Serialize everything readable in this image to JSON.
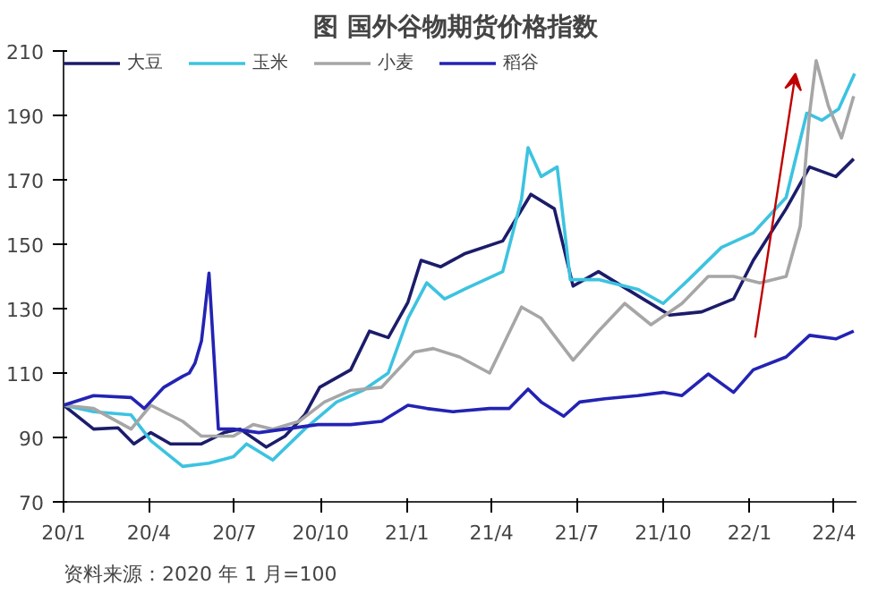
{
  "chart_data": {
    "type": "line",
    "title": "图  国外谷物期货价格指数",
    "annotations": [
      "资料来源：2020 年 1 月=100"
    ],
    "xlim": [
      "2020-01-01",
      "2022-04-25"
    ],
    "ylim": [
      70,
      210
    ],
    "xticks": [
      {
        "value": "2020-01",
        "label": "20/1"
      },
      {
        "value": "2020-04",
        "label": "20/4"
      },
      {
        "value": "2020-07",
        "label": "20/7"
      },
      {
        "value": "2020-10",
        "label": "20/10"
      },
      {
        "value": "2021-01",
        "label": "21/1"
      },
      {
        "value": "2021-04",
        "label": "21/4"
      },
      {
        "value": "2021-07",
        "label": "21/7"
      },
      {
        "value": "2021-10",
        "label": "21/10"
      },
      {
        "value": "2022-01",
        "label": "22/1"
      },
      {
        "value": "2022-04",
        "label": "22/4"
      }
    ],
    "yticks": [
      70,
      90,
      110,
      130,
      150,
      170,
      190,
      210
    ],
    "legend": "top",
    "marker": "none",
    "line_style": "solid",
    "series": [
      {
        "name": "大豆",
        "color": "#1c1c6b",
        "x": [
          "2020-01-01",
          "2020-02-02",
          "2020-02-28",
          "2020-03-16",
          "2020-04-03",
          "2020-04-24",
          "2020-05-27",
          "2020-06-10",
          "2020-06-20",
          "2020-07-07",
          "2020-08-04",
          "2020-08-24",
          "2020-09-14",
          "2020-09-30",
          "2020-11-02",
          "2020-11-22",
          "2020-12-12",
          "2021-01-02",
          "2021-01-16",
          "2021-02-06",
          "2021-03-03",
          "2021-04-13",
          "2021-05-13",
          "2021-06-07",
          "2021-06-27",
          "2021-07-24",
          "2021-09-04",
          "2021-10-08",
          "2021-11-11",
          "2021-12-15",
          "2022-01-05",
          "2022-02-09",
          "2022-03-06",
          "2022-04-03",
          "2022-04-22"
        ],
        "values": [
          100,
          92.6,
          93,
          88,
          91.5,
          88,
          88,
          90,
          91.5,
          92.6,
          87,
          90.4,
          97,
          105.6,
          111,
          123,
          121,
          132,
          145,
          143,
          147,
          151,
          165.5,
          161,
          137,
          141.5,
          134,
          128,
          129,
          133,
          145,
          161,
          174,
          171,
          176.5
        ]
      },
      {
        "name": "玉米",
        "color": "#3cc3e0",
        "x": [
          "2020-01-01",
          "2020-02-02",
          "2020-03-13",
          "2020-04-03",
          "2020-05-07",
          "2020-06-04",
          "2020-06-30",
          "2020-07-14",
          "2020-08-11",
          "2020-09-14",
          "2020-10-18",
          "2020-11-15",
          "2020-12-12",
          "2021-01-02",
          "2021-01-22",
          "2021-02-10",
          "2021-03-03",
          "2021-04-13",
          "2021-05-03",
          "2021-05-10",
          "2021-05-24",
          "2021-06-10",
          "2021-06-24",
          "2021-07-24",
          "2021-09-04",
          "2021-10-01",
          "2021-10-28",
          "2021-12-02",
          "2022-01-05",
          "2022-02-09",
          "2022-03-03",
          "2022-03-19",
          "2022-04-06",
          "2022-04-23"
        ],
        "values": [
          100,
          98,
          97,
          89,
          81,
          82,
          84,
          88,
          83,
          92.6,
          101,
          104.6,
          110,
          127,
          138,
          133,
          136,
          141.5,
          164,
          180,
          171,
          174,
          139,
          139,
          136,
          131.6,
          139,
          149,
          153.5,
          164.5,
          190.7,
          188.5,
          192,
          203
        ]
      },
      {
        "name": "小麦",
        "color": "#a6a6a6",
        "x": [
          "2020-01-01",
          "2020-02-02",
          "2020-03-13",
          "2020-04-03",
          "2020-05-07",
          "2020-05-27",
          "2020-06-30",
          "2020-07-21",
          "2020-08-11",
          "2020-09-08",
          "2020-10-05",
          "2020-11-02",
          "2020-12-05",
          "2021-01-09",
          "2021-01-29",
          "2021-02-26",
          "2021-03-30",
          "2021-05-03",
          "2021-05-24",
          "2021-06-27",
          "2021-07-24",
          "2021-08-21",
          "2021-09-18",
          "2021-10-21",
          "2021-11-18",
          "2021-12-15",
          "2022-01-12",
          "2022-02-09",
          "2022-02-24",
          "2022-03-06",
          "2022-03-13",
          "2022-03-26",
          "2022-04-09",
          "2022-04-22"
        ],
        "values": [
          100,
          99,
          92.6,
          100,
          95,
          90.4,
          90.4,
          94,
          92.6,
          95,
          101,
          104.6,
          105.6,
          116.5,
          117.6,
          115,
          110,
          130.5,
          127,
          114,
          123,
          131.6,
          125,
          131.6,
          140,
          140,
          138,
          140,
          155.6,
          190.7,
          207,
          193,
          183,
          196
        ]
      },
      {
        "name": "稻谷",
        "color": "#2323b4",
        "x": [
          "2020-01-01",
          "2020-02-02",
          "2020-03-13",
          "2020-03-27",
          "2020-04-17",
          "2020-05-07",
          "2020-05-14",
          "2020-05-20",
          "2020-05-27",
          "2020-05-30",
          "2020-06-04",
          "2020-06-14",
          "2020-06-30",
          "2020-07-27",
          "2020-08-24",
          "2020-09-28",
          "2020-11-02",
          "2020-12-05",
          "2021-01-02",
          "2021-01-22",
          "2021-02-19",
          "2021-03-30",
          "2021-04-20",
          "2021-05-10",
          "2021-05-24",
          "2021-06-17",
          "2021-07-04",
          "2021-07-31",
          "2021-09-04",
          "2021-10-01",
          "2021-10-21",
          "2021-11-18",
          "2021-12-15",
          "2022-01-05",
          "2022-02-09",
          "2022-03-06",
          "2022-04-03",
          "2022-04-22"
        ],
        "values": [
          100,
          103,
          102.4,
          99,
          105.6,
          109,
          110,
          113,
          120,
          127.6,
          141,
          92.6,
          92.6,
          91.5,
          92.6,
          94,
          94,
          95,
          100,
          99,
          98,
          99,
          99,
          105,
          101,
          96.6,
          101,
          102,
          103,
          104,
          103,
          109.7,
          104,
          111,
          115,
          121.7,
          120.6,
          123
        ]
      }
    ]
  }
}
